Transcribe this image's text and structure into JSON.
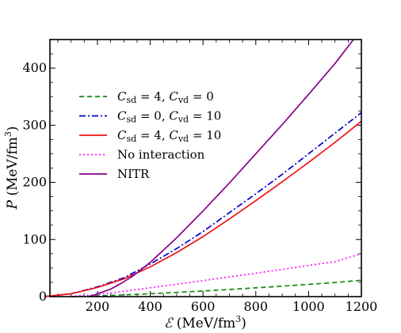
{
  "chart_data": {
    "type": "line",
    "xlabel": {
      "symbol": "ℰ",
      "unit": "(MeV/fm",
      "exp": "3",
      "close": ")"
    },
    "ylabel": {
      "symbol": "P",
      "unit": "(MeV/fm",
      "exp": "3",
      "close": ")"
    },
    "xlim": [
      0,
      1200
    ],
    "ylim": [
      0,
      450
    ],
    "xticks": [
      200,
      400,
      600,
      800,
      1000,
      1200
    ],
    "yticks": [
      0,
      100,
      200,
      300,
      400
    ],
    "legend_position": "upper-left",
    "series": [
      {
        "legend": [
          "C",
          "sd",
          " = 4, ",
          "C",
          "vd",
          " = 0"
        ],
        "color": "#118811",
        "dash": "dashed",
        "x": [
          100,
          200,
          300,
          400,
          500,
          600,
          700,
          800,
          900,
          1000,
          1100,
          1200
        ],
        "y": [
          0.0,
          1.2,
          3.0,
          5.0,
          7.3,
          9.8,
          12.5,
          15.3,
          18.3,
          21.4,
          24.7,
          28.7
        ]
      },
      {
        "legend": [
          "C",
          "sd",
          " = 0, ",
          "C",
          "vd",
          " = 10"
        ],
        "color": "#0000cc",
        "dash": "dashdot",
        "x": [
          0,
          100,
          200,
          300,
          400,
          500,
          600,
          700,
          800,
          900,
          1000,
          1100,
          1200
        ],
        "y": [
          0,
          5,
          17,
          33,
          57,
          84,
          114,
          147,
          180,
          214,
          250,
          286,
          322
        ]
      },
      {
        "legend": [
          "C",
          "sd",
          " = 4, ",
          "C",
          "vd",
          " = 10"
        ],
        "color": "#ee1111",
        "dash": "solid",
        "x": [
          0,
          100,
          200,
          300,
          400,
          500,
          600,
          700,
          800,
          900,
          1000,
          1100,
          1200
        ],
        "y": [
          0,
          5,
          16,
          31,
          52,
          77,
          105,
          136,
          168,
          201,
          235,
          270,
          307
        ]
      },
      {
        "legend": [
          "No interaction"
        ],
        "color": "#ff11ff",
        "dash": "dotted",
        "x": [
          100,
          200,
          300,
          400,
          500,
          600,
          700,
          800,
          900,
          1000,
          1100,
          1200
        ],
        "y": [
          0.5,
          3.5,
          9.3,
          15.5,
          21.7,
          28,
          34.5,
          41,
          47.7,
          54.5,
          61.2,
          75
        ]
      },
      {
        "legend": [
          "NITR"
        ],
        "color": "#880088",
        "dash": "solid",
        "x": [
          170,
          250,
          300,
          340,
          400,
          500,
          600,
          700,
          800,
          900,
          1000,
          1100,
          1170
        ],
        "y": [
          0,
          13,
          26,
          38,
          60,
          103,
          150,
          199,
          250,
          301,
          354,
          408,
          450
        ]
      }
    ]
  }
}
